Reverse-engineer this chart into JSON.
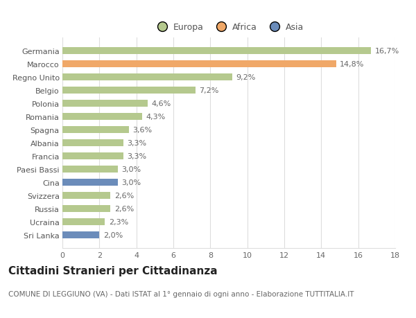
{
  "categories": [
    "Sri Lanka",
    "Ucraina",
    "Russia",
    "Svizzera",
    "Cina",
    "Paesi Bassi",
    "Francia",
    "Albania",
    "Spagna",
    "Romania",
    "Polonia",
    "Belgio",
    "Regno Unito",
    "Marocco",
    "Germania"
  ],
  "values": [
    2.0,
    2.3,
    2.6,
    2.6,
    3.0,
    3.0,
    3.3,
    3.3,
    3.6,
    4.3,
    4.6,
    7.2,
    9.2,
    14.8,
    16.7
  ],
  "labels": [
    "2,0%",
    "2,3%",
    "2,6%",
    "2,6%",
    "3,0%",
    "3,0%",
    "3,3%",
    "3,3%",
    "3,6%",
    "4,3%",
    "4,6%",
    "7,2%",
    "9,2%",
    "14,8%",
    "16,7%"
  ],
  "colors": [
    "#6b8cba",
    "#b5c98e",
    "#b5c98e",
    "#b5c98e",
    "#6b8cba",
    "#b5c98e",
    "#b5c98e",
    "#b5c98e",
    "#b5c98e",
    "#b5c98e",
    "#b5c98e",
    "#b5c98e",
    "#b5c98e",
    "#f0a868",
    "#b5c98e"
  ],
  "legend_labels": [
    "Europa",
    "Africa",
    "Asia"
  ],
  "legend_colors": [
    "#b5c98e",
    "#f0a868",
    "#6b8cba"
  ],
  "xlim": [
    0,
    18
  ],
  "xticks": [
    0,
    2,
    4,
    6,
    8,
    10,
    12,
    14,
    16,
    18
  ],
  "title": "Cittadini Stranieri per Cittadinanza",
  "subtitle": "COMUNE DI LEGGIUNO (VA) - Dati ISTAT al 1° gennaio di ogni anno - Elaborazione TUTTITALIA.IT",
  "background_color": "#ffffff",
  "grid_color": "#dddddd",
  "bar_height": 0.55,
  "label_fontsize": 8,
  "tick_fontsize": 8,
  "title_fontsize": 11,
  "subtitle_fontsize": 7.5
}
